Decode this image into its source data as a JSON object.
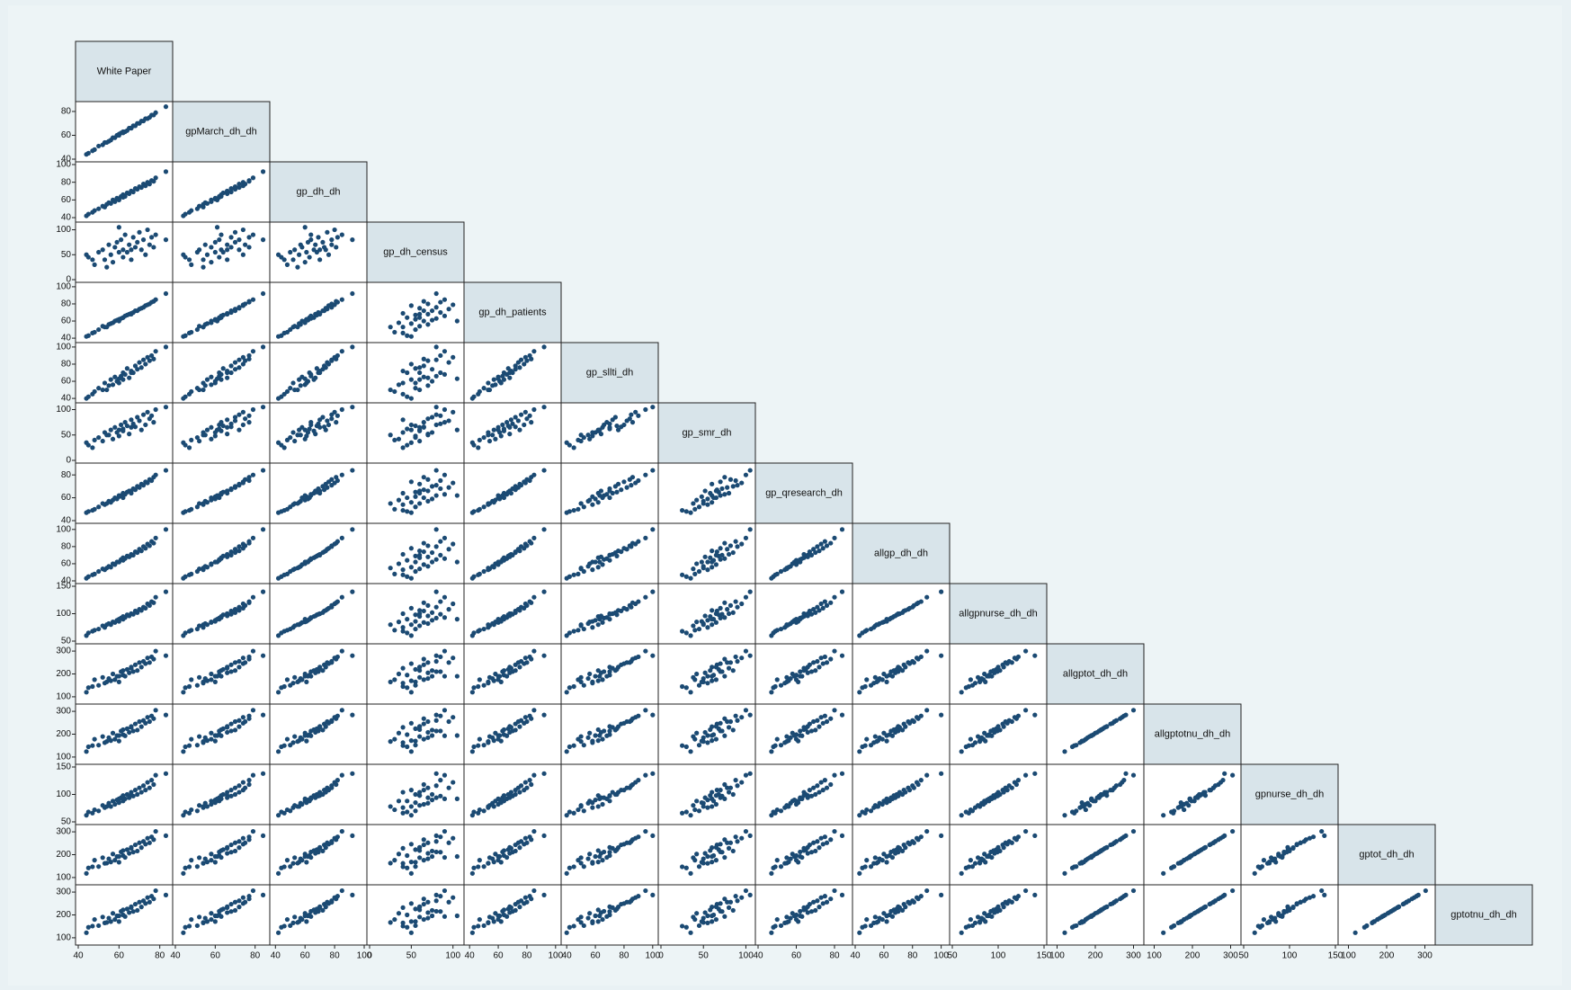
{
  "chart_data": {
    "type": "scatter-matrix",
    "point_color": "#1b4a73",
    "diagonal_color": "#d8e4ea",
    "variables": [
      {
        "name": "White Paper",
        "lim": [
          40,
          85
        ],
        "ticks": [
          40,
          60,
          80
        ],
        "values": [
          45,
          48,
          50,
          52,
          53,
          55,
          56,
          57,
          58,
          59,
          60,
          61,
          62,
          62,
          63,
          64,
          65,
          66,
          67,
          68,
          69,
          70,
          71,
          72,
          73,
          74,
          75,
          76,
          77,
          78,
          44,
          47,
          54,
          60,
          66,
          83
        ]
      },
      {
        "name": "gpMarch_dh_dh",
        "lim": [
          40,
          86
        ],
        "ticks": [
          40,
          60,
          80
        ],
        "values": [
          45,
          48,
          51,
          52,
          54,
          55,
          56,
          58,
          58,
          60,
          60,
          62,
          62,
          63,
          63,
          64,
          66,
          66,
          68,
          68,
          70,
          70,
          72,
          72,
          74,
          74,
          75,
          77,
          77,
          79,
          44,
          47,
          54,
          61,
          66,
          84
        ]
      },
      {
        "name": "gp_dh_dh",
        "lim": [
          38,
          100
        ],
        "ticks": [
          40,
          60,
          80,
          100
        ],
        "values": [
          44,
          48,
          50,
          53,
          52,
          57,
          56,
          60,
          58,
          62,
          61,
          64,
          63,
          66,
          64,
          68,
          67,
          70,
          69,
          73,
          72,
          75,
          74,
          78,
          76,
          80,
          78,
          82,
          81,
          85,
          42,
          46,
          55,
          60,
          70,
          92
        ]
      },
      {
        "name": "gp_dh_census",
        "lim": [
          0,
          110
        ],
        "ticks": [
          0,
          50,
          100
        ],
        "values": [
          45,
          30,
          55,
          60,
          40,
          70,
          50,
          35,
          65,
          75,
          55,
          80,
          45,
          60,
          90,
          55,
          70,
          40,
          85,
          65,
          75,
          95,
          60,
          80,
          50,
          100,
          70,
          85,
          65,
          90,
          50,
          40,
          25,
          105,
          60,
          80
        ]
      },
      {
        "name": "gp_dh_patients",
        "lim": [
          38,
          102
        ],
        "ticks": [
          40,
          60,
          80,
          100
        ],
        "values": [
          43,
          47,
          50,
          54,
          53,
          56,
          57,
          58,
          60,
          61,
          62,
          63,
          64,
          64,
          66,
          67,
          68,
          69,
          70,
          72,
          72,
          74,
          75,
          76,
          78,
          79,
          80,
          82,
          83,
          85,
          42,
          46,
          53,
          60,
          68,
          92
        ]
      },
      {
        "name": "gp_sllti_dh",
        "lim": [
          38,
          102
        ],
        "ticks": [
          40,
          60,
          80,
          100
        ],
        "values": [
          42,
          48,
          52,
          50,
          58,
          55,
          62,
          56,
          65,
          60,
          58,
          66,
          70,
          62,
          68,
          75,
          64,
          72,
          70,
          78,
          74,
          82,
          76,
          85,
          80,
          88,
          84,
          90,
          86,
          95,
          40,
          45,
          50,
          63,
          70,
          100
        ]
      },
      {
        "name": "gp_smr_dh",
        "lim": [
          0,
          108
        ],
        "ticks": [
          0,
          50,
          100
        ],
        "values": [
          30,
          40,
          45,
          38,
          55,
          50,
          60,
          42,
          65,
          55,
          48,
          70,
          62,
          58,
          75,
          68,
          52,
          80,
          72,
          66,
          85,
          78,
          60,
          90,
          70,
          95,
          82,
          88,
          75,
          100,
          35,
          25,
          50,
          60,
          65,
          105
        ]
      },
      {
        "name": "gp_qresearch_dh",
        "lim": [
          40,
          88
        ],
        "ticks": [
          40,
          60,
          80
        ],
        "values": [
          48,
          50,
          52,
          55,
          54,
          57,
          56,
          58,
          60,
          59,
          61,
          62,
          60,
          64,
          63,
          65,
          66,
          64,
          68,
          67,
          70,
          69,
          72,
          71,
          74,
          73,
          76,
          75,
          78,
          80,
          47,
          49,
          55,
          62,
          66,
          84
        ]
      },
      {
        "name": "allgp_dh_dh",
        "lim": [
          40,
          104
        ],
        "ticks": [
          40,
          60,
          80,
          100
        ],
        "values": [
          45,
          48,
          51,
          54,
          53,
          57,
          56,
          60,
          59,
          62,
          62,
          65,
          64,
          67,
          66,
          69,
          68,
          71,
          70,
          74,
          73,
          77,
          75,
          80,
          78,
          83,
          81,
          86,
          84,
          90,
          43,
          47,
          55,
          62,
          70,
          100
        ]
      },
      {
        "name": "allgpnurse_dh_dh",
        "lim": [
          50,
          150
        ],
        "ticks": [
          50,
          100,
          150
        ],
        "values": [
          65,
          70,
          72,
          78,
          75,
          82,
          80,
          85,
          84,
          88,
          86,
          92,
          90,
          95,
          93,
          98,
          96,
          100,
          99,
          105,
          102,
          108,
          106,
          112,
          110,
          118,
          115,
          122,
          120,
          130,
          60,
          68,
          80,
          90,
          100,
          140
        ]
      },
      {
        "name": "allgptot_dh_dh",
        "lim": [
          80,
          320
        ],
        "ticks": [
          100,
          200,
          300
        ],
        "values": [
          140,
          175,
          150,
          185,
          160,
          180,
          170,
          200,
          175,
          190,
          165,
          210,
          195,
          215,
          190,
          220,
          205,
          225,
          210,
          240,
          215,
          250,
          230,
          255,
          245,
          270,
          250,
          275,
          265,
          300,
          120,
          145,
          165,
          190,
          230,
          280
        ]
      },
      {
        "name": "allgptotnu_dh_dh",
        "lim": [
          80,
          320
        ],
        "ticks": [
          100,
          200,
          300
        ],
        "values": [
          145,
          178,
          152,
          190,
          163,
          185,
          172,
          205,
          178,
          194,
          170,
          214,
          198,
          220,
          193,
          224,
          208,
          230,
          214,
          245,
          218,
          255,
          233,
          260,
          248,
          274,
          255,
          280,
          268,
          305,
          124,
          150,
          168,
          194,
          234,
          284
        ]
      },
      {
        "name": "gpnurse_dh_dh",
        "lim": [
          50,
          150
        ],
        "ticks": [
          50,
          100,
          150
        ],
        "values": [
          68,
          72,
          70,
          80,
          76,
          84,
          78,
          88,
          82,
          90,
          85,
          94,
          88,
          98,
          92,
          100,
          94,
          104,
          97,
          108,
          100,
          112,
          104,
          116,
          108,
          122,
          112,
          126,
          118,
          135,
          62,
          66,
          78,
          92,
          98,
          138
        ]
      },
      {
        "name": "gptot_dh_dh",
        "lim": [
          80,
          320
        ],
        "ticks": [
          100,
          200,
          300
        ],
        "values": [
          142,
          176,
          148,
          187,
          162,
          182,
          168,
          203,
          176,
          192,
          167,
          212,
          196,
          218,
          188,
          222,
          206,
          228,
          211,
          243,
          216,
          252,
          231,
          258,
          246,
          272,
          252,
          278,
          266,
          302,
          118,
          147,
          163,
          192,
          232,
          283
        ]
      },
      {
        "name": "gptotnu_dh_dh",
        "lim": [
          80,
          320
        ],
        "ticks": [
          100,
          200,
          300
        ],
        "values": [
          146,
          180,
          153,
          191,
          165,
          186,
          171,
          207,
          180,
          196,
          171,
          216,
          200,
          222,
          193,
          226,
          210,
          232,
          215,
          247,
          220,
          256,
          235,
          262,
          250,
          276,
          256,
          282,
          270,
          306,
          122,
          151,
          167,
          196,
          236,
          287
        ]
      }
    ]
  }
}
